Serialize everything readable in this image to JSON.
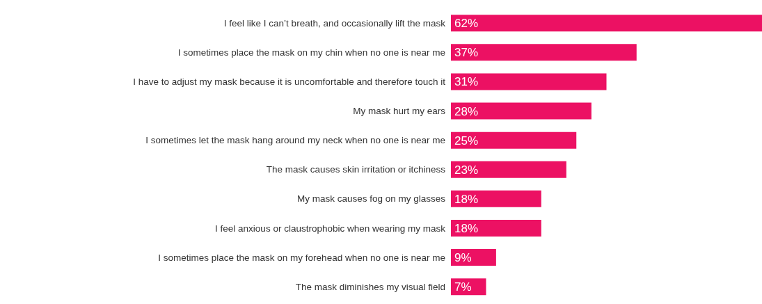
{
  "chart_data": {
    "type": "bar",
    "orientation": "horizontal",
    "categories": [
      "I feel like I can’t breath, and occasionally lift the mask",
      "I sometimes place the mask on my chin when no one is near me",
      "I have to adjust my mask because it is uncomfortable and therefore touch it",
      "My mask hurt my ears",
      "I sometimes let the mask hang around my neck when no one is near me",
      "The mask causes skin irritation or itchiness",
      "My mask causes fog on my glasses",
      "I feel anxious or claustrophobic when wearing my mask",
      "I sometimes place the mask on my forehead when no one is near me",
      "The mask diminishes my visual field"
    ],
    "values": [
      62,
      37,
      31,
      28,
      25,
      23,
      18,
      18,
      9,
      7
    ],
    "value_labels": [
      "62%",
      "37%",
      "31%",
      "28%",
      "25%",
      "23%",
      "18%",
      "18%",
      "9%",
      "7%"
    ],
    "color": "#ec1163"
  }
}
